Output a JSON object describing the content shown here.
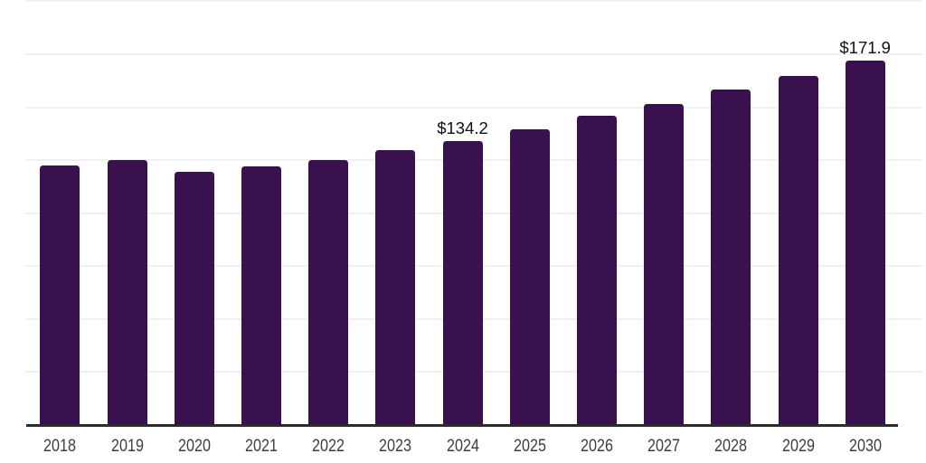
{
  "chart_data": {
    "type": "bar",
    "title": "",
    "xlabel": "",
    "ylabel": "",
    "categories": [
      "2018",
      "2019",
      "2020",
      "2021",
      "2022",
      "2023",
      "2024",
      "2025",
      "2026",
      "2027",
      "2028",
      "2029",
      "2030"
    ],
    "values": [
      122.4,
      125.2,
      119.5,
      121.9,
      124.9,
      129.7,
      134.2,
      139.7,
      145.8,
      151.6,
      158.5,
      164.9,
      171.9
    ],
    "data_labels": [
      "",
      "",
      "",
      "",
      "",
      "",
      "$134.2",
      "",
      "",
      "",
      "",
      "",
      "$171.9"
    ],
    "ylim": [
      0,
      200
    ],
    "ytick_interval": 25,
    "y_tick_labels_visible": false,
    "grid": "horizontal",
    "legend": "none",
    "style": {
      "background_color": "#ffffff",
      "bar_color": "#38114E",
      "gridline_color": "#F0F0F0",
      "axis_line_color": "#2B2B2B",
      "tick_label_color": "#3D3D3D",
      "data_label_color": "#111111"
    }
  }
}
